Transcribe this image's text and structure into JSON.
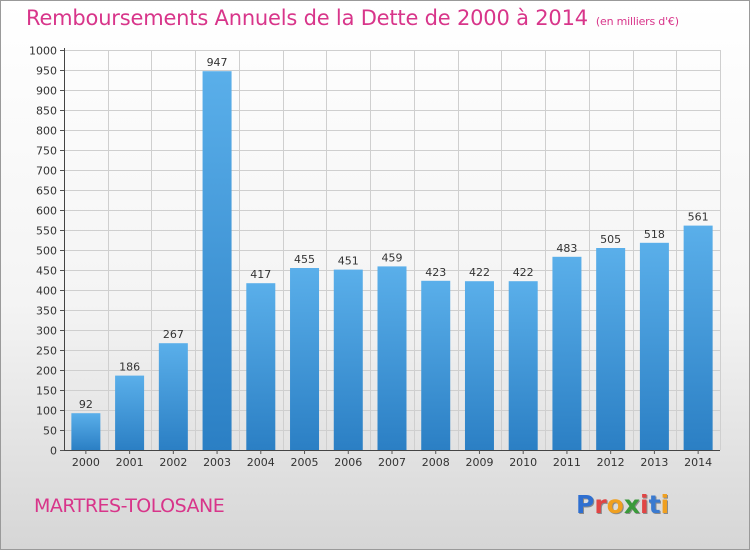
{
  "title": "Remboursements Annuels de la Dette de 2000 à 2014",
  "subtitle": "(en milliers d'€)",
  "commune": "MARTRES-TOLOSANE",
  "logo": {
    "text": "Proxiti",
    "letter_colors": [
      "#2f6fd0",
      "#e04545",
      "#f0a020",
      "#3a9a3a",
      "#e04545",
      "#3a7ad0",
      "#f0a020"
    ]
  },
  "colors": {
    "title": "#d8358a",
    "bar_top": "#5aafea",
    "bar_bottom": "#2b7fc4",
    "grid": "#cfcfcf"
  },
  "chart_data": {
    "type": "bar",
    "categories": [
      "2000",
      "2001",
      "2002",
      "2003",
      "2004",
      "2005",
      "2006",
      "2007",
      "2008",
      "2009",
      "2010",
      "2011",
      "2012",
      "2013",
      "2014"
    ],
    "values": [
      92,
      186,
      267,
      947,
      417,
      455,
      451,
      459,
      423,
      422,
      422,
      483,
      505,
      518,
      561
    ],
    "ylim": [
      0,
      1000
    ],
    "yticks": [
      0,
      50,
      100,
      150,
      200,
      250,
      300,
      350,
      400,
      450,
      500,
      550,
      600,
      650,
      700,
      750,
      800,
      850,
      900,
      950,
      1000
    ],
    "grid": true,
    "data_labels": true,
    "legend": "none"
  }
}
